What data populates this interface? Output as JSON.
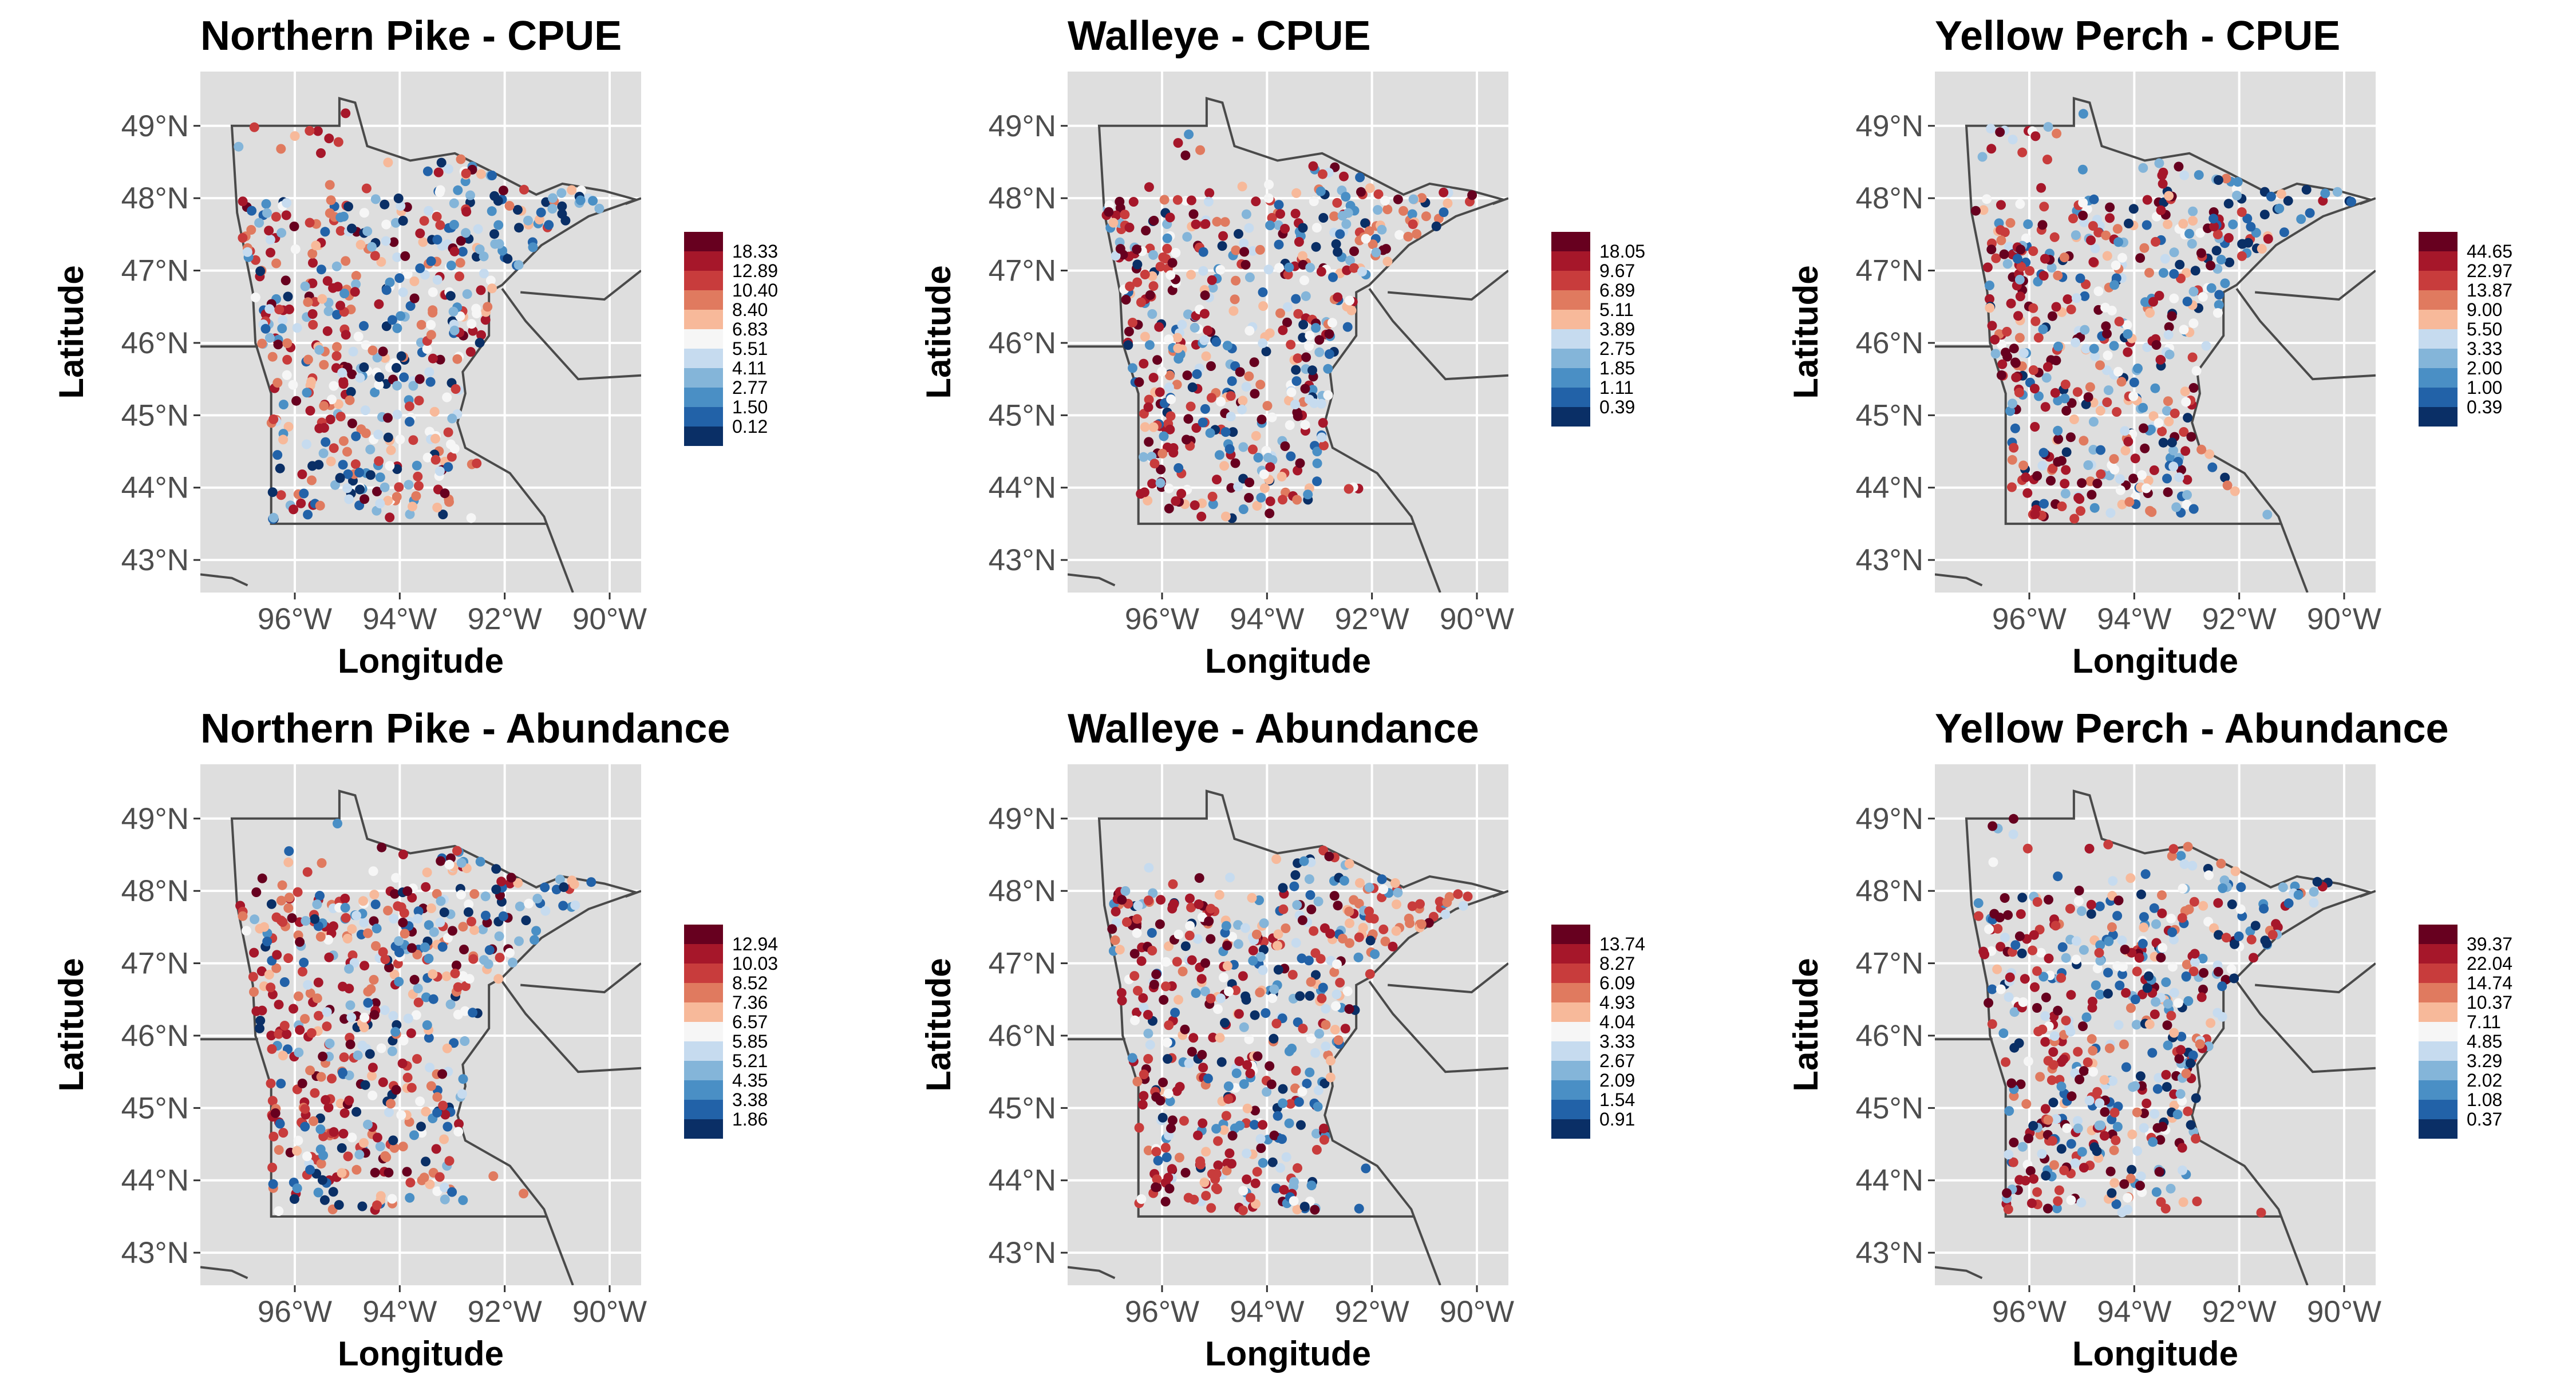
{
  "panels": [
    {
      "title": "Northern Pike - CPUE",
      "xlabel": "Longitude",
      "ylabel": "Latitude",
      "legend_breaks": [
        "18.33",
        "12.89",
        "10.40",
        "8.40",
        "6.83",
        "5.51",
        "4.11",
        "2.77",
        "1.50",
        "0.12"
      ]
    },
    {
      "title": "Walleye - CPUE",
      "xlabel": "Longitude",
      "ylabel": "Latitude",
      "legend_breaks": [
        "18.05",
        "9.67",
        "6.89",
        "5.11",
        "3.89",
        "2.75",
        "1.85",
        "1.11",
        "0.39"
      ]
    },
    {
      "title": "Yellow Perch - CPUE",
      "xlabel": "Longitude",
      "ylabel": "Latitude",
      "legend_breaks": [
        "44.65",
        "22.97",
        "13.87",
        "9.00",
        "5.50",
        "3.33",
        "2.00",
        "1.00",
        "0.39"
      ]
    },
    {
      "title": "Northern Pike - Abundance",
      "xlabel": "Longitude",
      "ylabel": "Latitude",
      "legend_breaks": [
        "12.94",
        "10.03",
        "8.52",
        "7.36",
        "6.57",
        "5.85",
        "5.21",
        "4.35",
        "3.38",
        "1.86"
      ]
    },
    {
      "title": "Walleye - Abundance",
      "xlabel": "Longitude",
      "ylabel": "Latitude",
      "legend_breaks": [
        "13.74",
        "8.27",
        "6.09",
        "4.93",
        "4.04",
        "3.33",
        "2.67",
        "2.09",
        "1.54",
        "0.91"
      ]
    },
    {
      "title": "Yellow Perch - Abundance",
      "xlabel": "Longitude",
      "ylabel": "Latitude",
      "legend_breaks": [
        "39.37",
        "22.04",
        "14.74",
        "10.37",
        "7.11",
        "4.85",
        "3.29",
        "2.02",
        "1.08",
        "0.37"
      ]
    }
  ],
  "axes": {
    "x_ticks": [
      "96°W",
      "94°W",
      "92°W",
      "90°W"
    ],
    "y_ticks": [
      "49°N",
      "48°N",
      "47°N",
      "46°N",
      "45°N",
      "44°N",
      "43°N"
    ],
    "x_values": [
      -96,
      -94,
      -92,
      -90
    ],
    "y_values": [
      49,
      48,
      47,
      46,
      45,
      44,
      43
    ],
    "xlim": [
      -97.8,
      -89.4
    ],
    "ylim": [
      42.55,
      49.75
    ]
  },
  "colors": {
    "panel_background": "#dedede",
    "grid": "#ffffff",
    "border": "#4a4a4a",
    "palette": [
      "#67001f",
      "#a6172a",
      "#c83c3c",
      "#e07a5f",
      "#f7b99a",
      "#f6f6f6",
      "#c6dbef",
      "#84b5d9",
      "#4a8fc5",
      "#2262a8",
      "#0a2f66"
    ]
  }
}
